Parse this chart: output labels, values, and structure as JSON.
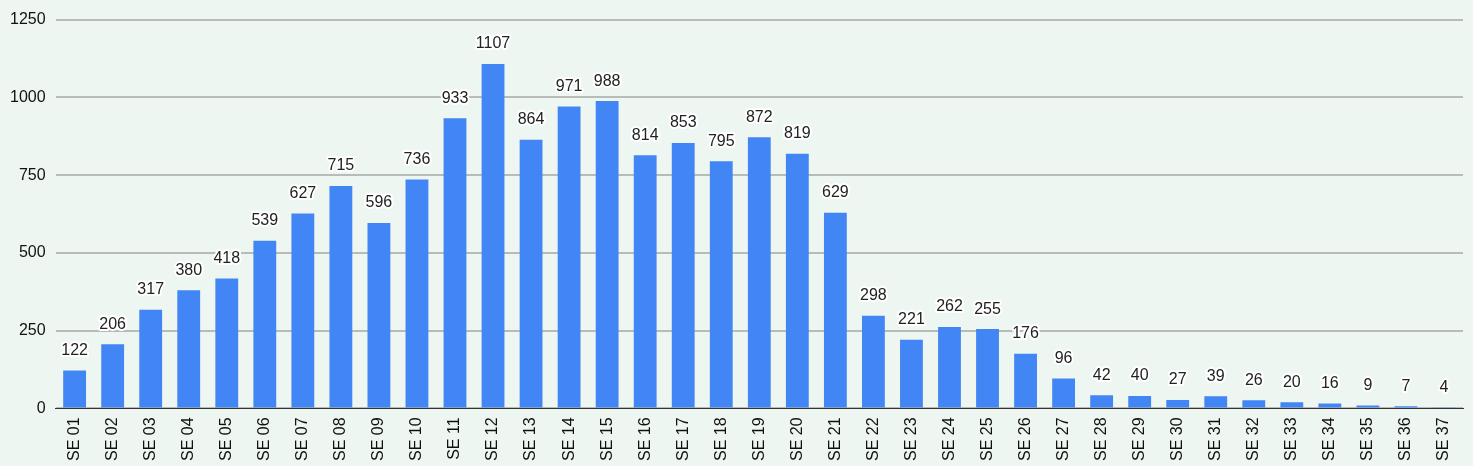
{
  "chart_data": {
    "type": "bar",
    "categories": [
      "SE 01",
      "SE 02",
      "SE 03",
      "SE 04",
      "SE 05",
      "SE 06",
      "SE 07",
      "SE 08",
      "SE 09",
      "SE 10",
      "SE 11",
      "SE 12",
      "SE 13",
      "SE 14",
      "SE 15",
      "SE 16",
      "SE 17",
      "SE 18",
      "SE 19",
      "SE 20",
      "SE 21",
      "SE 22",
      "SE 23",
      "SE 24",
      "SE 25",
      "SE 26",
      "SE 27",
      "SE 28",
      "SE 29",
      "SE 30",
      "SE 31",
      "SE 32",
      "SE 33",
      "SE 34",
      "SE 35",
      "SE 36",
      "SE 37"
    ],
    "values": [
      122,
      206,
      317,
      380,
      418,
      539,
      627,
      715,
      596,
      736,
      933,
      1107,
      864,
      971,
      988,
      814,
      853,
      795,
      872,
      819,
      629,
      298,
      221,
      262,
      255,
      176,
      96,
      42,
      40,
      27,
      39,
      26,
      20,
      16,
      9,
      7,
      4
    ],
    "color": "#4285f4",
    "ylim": [
      0,
      1250
    ],
    "yticks": [
      0,
      250,
      500,
      750,
      1000,
      1250
    ],
    "grid": "y",
    "data_labels": true,
    "legend": false
  }
}
